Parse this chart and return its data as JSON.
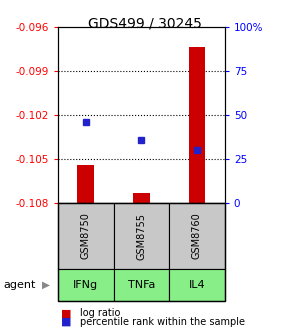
{
  "title": "GDS499 / 30245",
  "samples": [
    "GSM8750",
    "GSM8755",
    "GSM8760"
  ],
  "agents": [
    "IFNg",
    "TNFa",
    "IL4"
  ],
  "log_ratios": [
    -0.1054,
    -0.1073,
    -0.0974
  ],
  "percentile_ranks": [
    46,
    36,
    30
  ],
  "ylim_left": [
    -0.108,
    -0.096
  ],
  "ylim_right": [
    0,
    100
  ],
  "yticks_left": [
    -0.108,
    -0.105,
    -0.102,
    -0.099,
    -0.096
  ],
  "ytick_labels_left": [
    "-0.108",
    "-0.105",
    "-0.102",
    "-0.099",
    "-0.096"
  ],
  "yticks_right": [
    0,
    25,
    50,
    75,
    100
  ],
  "ytick_labels_right": [
    "0",
    "25",
    "50",
    "75",
    "100%"
  ],
  "bar_color": "#cc0000",
  "dot_color": "#2222cc",
  "gray_box_color": "#c8c8c8",
  "green_box_color": "#88ee88",
  "agent_label": "agent",
  "legend_bar": "log ratio",
  "legend_dot": "percentile rank within the sample",
  "title_fontsize": 10,
  "axis_fontsize": 7.5,
  "label_fontsize": 8,
  "legend_fontsize": 7
}
